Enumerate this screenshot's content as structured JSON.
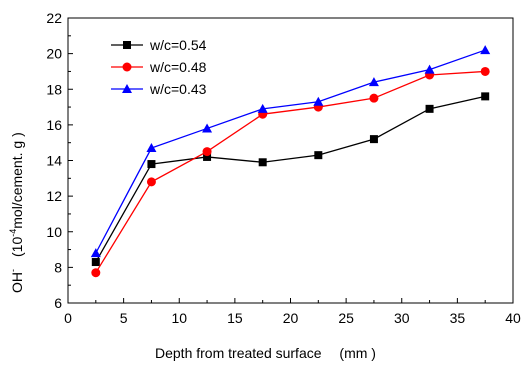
{
  "chart_data": {
    "type": "line",
    "xlabel": "Depth from treated surface",
    "xlabel_unit": "(mm )",
    "ylabel_prefix": "OH",
    "ylabel_sup": "-",
    "ylabel_unit_pre": "(10",
    "ylabel_unit_sup": "-4",
    "ylabel_unit_post": "mol/cement. g )",
    "xlim": [
      0,
      40
    ],
    "ylim": [
      6,
      22
    ],
    "xticks": [
      0,
      5,
      10,
      15,
      20,
      25,
      30,
      35,
      40
    ],
    "yticks": [
      6,
      8,
      10,
      12,
      14,
      16,
      18,
      20,
      22
    ],
    "x": [
      2.5,
      7.5,
      12.5,
      17.5,
      22.5,
      27.5,
      32.5,
      37.5
    ],
    "legend_position": "top-left",
    "series": [
      {
        "name": "w/c=0.54",
        "color": "#000000",
        "marker": "square",
        "values": [
          8.3,
          13.8,
          14.2,
          13.9,
          14.3,
          15.2,
          16.9,
          17.6
        ]
      },
      {
        "name": "w/c=0.48",
        "color": "#ff0000",
        "marker": "circle",
        "values": [
          7.7,
          12.8,
          14.5,
          16.6,
          17.0,
          17.5,
          18.8,
          19.0
        ]
      },
      {
        "name": "w/c=0.43",
        "color": "#0000ff",
        "marker": "triangle",
        "values": [
          8.8,
          14.7,
          15.8,
          16.9,
          17.3,
          18.4,
          19.1,
          20.2
        ]
      }
    ]
  }
}
